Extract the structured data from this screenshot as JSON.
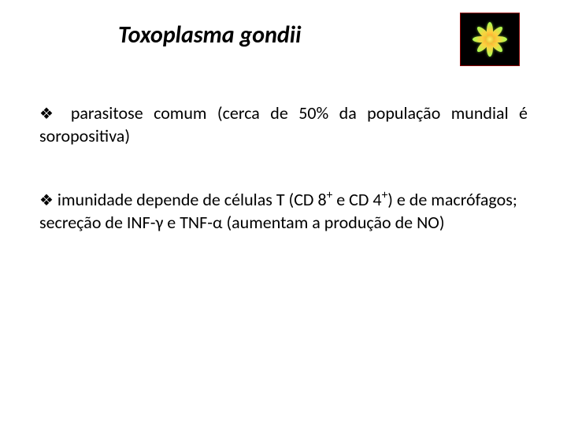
{
  "title": "Toxoplasma gondii",
  "bullets": {
    "b1": "parasitose comum (cerca de 50% da população mundial é soropositiva)",
    "b2_pre": "imunidade depende de células T (CD 8",
    "b2_sup1": "+",
    "b2_mid1": " e CD 4",
    "b2_sup2": "+",
    "b2_mid2": ") e de macrófagos; secreção de INF-",
    "b2_gamma": "γ",
    "b2_mid3": " e TNF-",
    "b2_alpha": "α",
    "b2_tail": " (aumentam a produção de NO)"
  },
  "diamond_glyph": "❖",
  "image": {
    "petals": 8,
    "petal_gradient": [
      "#ff9a2a",
      "#ffd040",
      "#a8ff50"
    ],
    "background": "#000000",
    "border": "#8b0000"
  },
  "typography": {
    "title_fontsize": 30,
    "body_fontsize": 22,
    "title_italic": true,
    "title_bold": true
  },
  "colors": {
    "page_bg": "#ffffff",
    "text": "#000000"
  }
}
